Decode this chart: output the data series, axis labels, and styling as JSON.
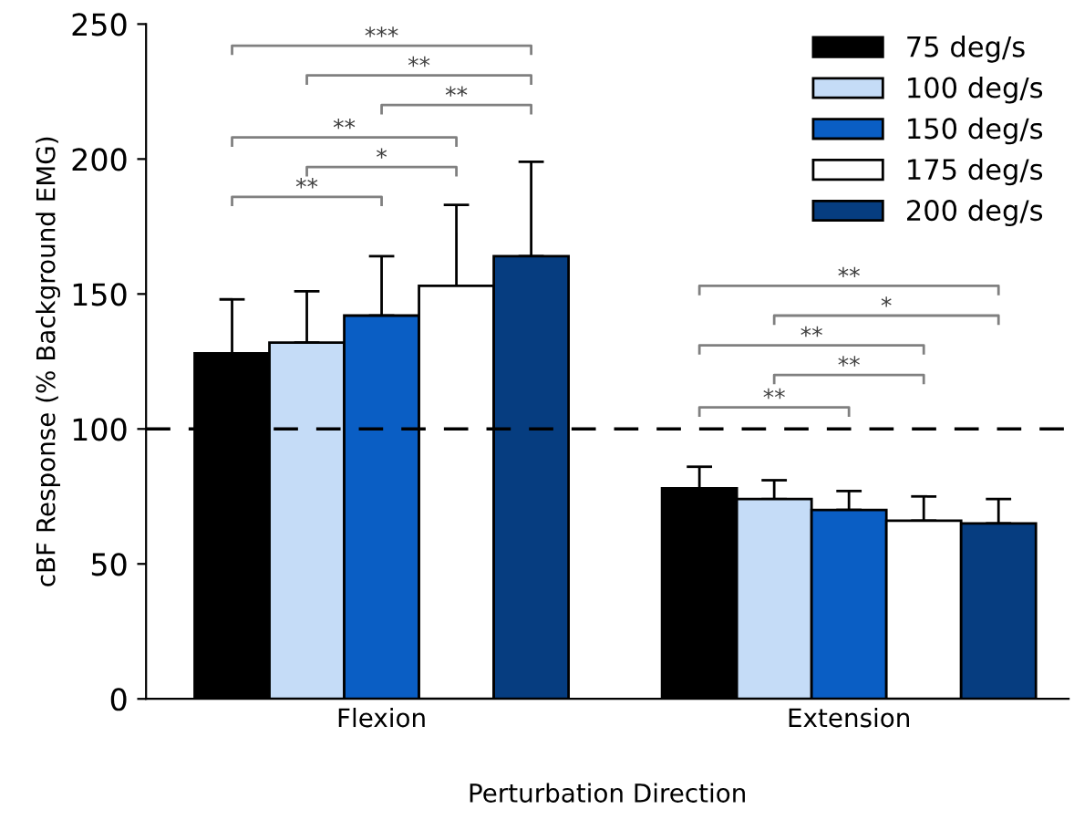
{
  "chart_data": {
    "type": "bar",
    "xlabel": "Perturbation Direction",
    "ylabel": "cBF Response (% Background EMG)",
    "categories": [
      "Flexion",
      "Extension"
    ],
    "series": [
      {
        "name": "75 deg/s",
        "color": "#000000",
        "values": [
          128,
          78
        ],
        "errors": [
          [
            128,
            148
          ],
          [
            78,
            86
          ]
        ]
      },
      {
        "name": "100 deg/s",
        "color": "#c5dcf7",
        "values": [
          132,
          74
        ],
        "errors": [
          [
            132,
            151
          ],
          [
            74,
            81
          ]
        ]
      },
      {
        "name": "150 deg/s",
        "color": "#0a5ec4",
        "values": [
          142,
          70
        ],
        "errors": [
          [
            142,
            164
          ],
          [
            70,
            77
          ]
        ]
      },
      {
        "name": "175 deg/s",
        "color": "#ffffff",
        "values": [
          153,
          66
        ],
        "errors": [
          [
            153,
            183
          ],
          [
            66,
            75
          ]
        ]
      },
      {
        "name": "200 deg/s",
        "color": "#063d80",
        "values": [
          164,
          65
        ],
        "errors": [
          [
            164,
            199
          ],
          [
            65,
            74
          ]
        ]
      }
    ],
    "ylim": [
      0,
      250
    ],
    "yticks": [
      0,
      50,
      100,
      150,
      200,
      250
    ],
    "ref_lines": [
      {
        "axis": "y",
        "value": 100,
        "line_style": "dashed",
        "color": "#000000"
      }
    ],
    "annotations": [
      "***",
      "**",
      "**",
      "**",
      "*",
      "**",
      "**",
      "*",
      "**",
      "**",
      "**"
    ],
    "legend": "top right",
    "grid": false
  }
}
